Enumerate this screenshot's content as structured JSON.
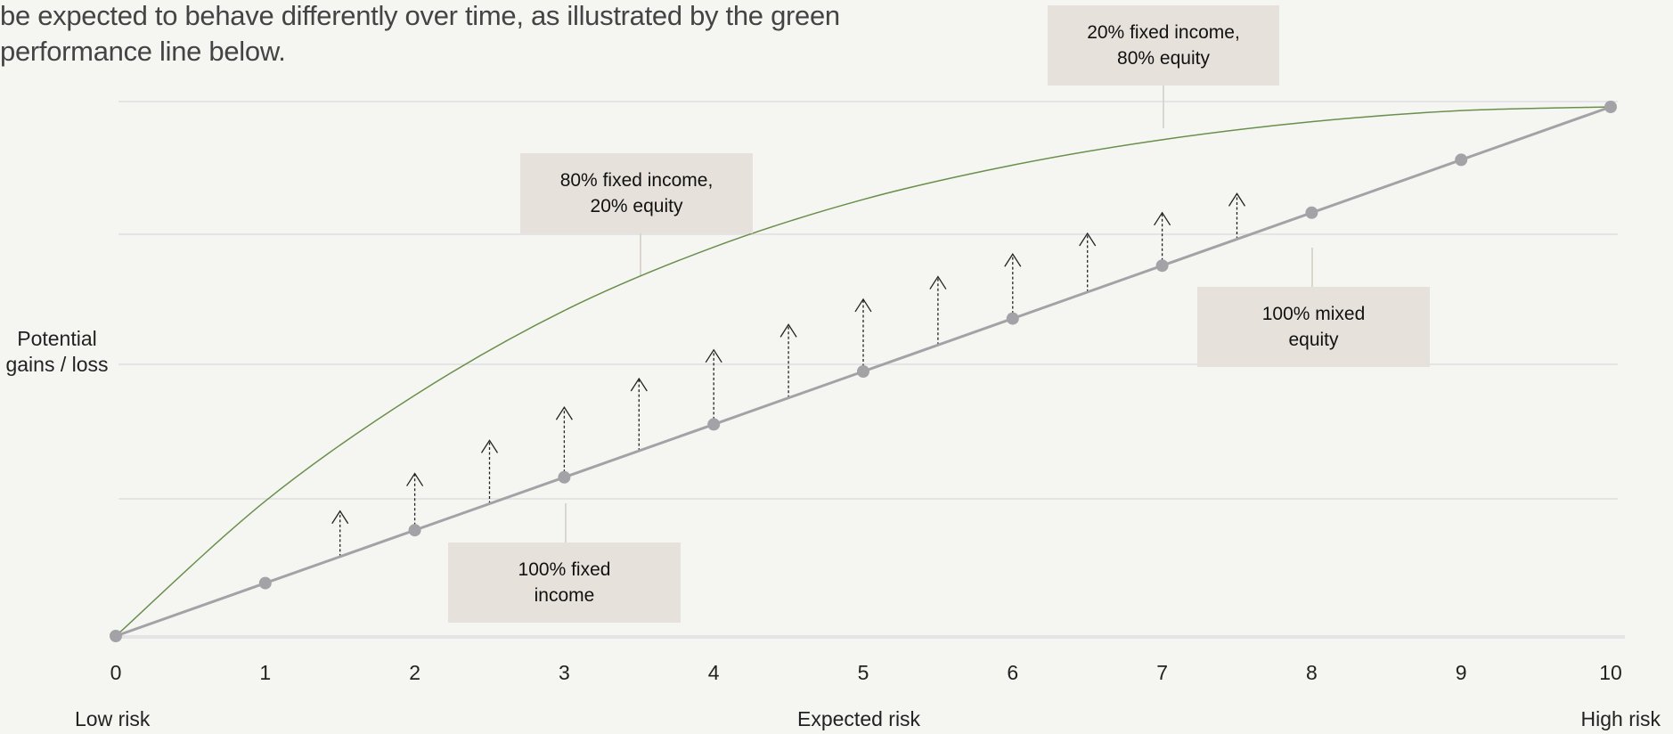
{
  "intro_text": "be expected to behave differently over time, as illustrated by the green performance line below.",
  "chart_data": {
    "type": "line",
    "title": "",
    "xlabel": "Expected risk",
    "ylabel": "Potential gains / loss",
    "x_end_labels": {
      "left": "Low risk",
      "right": "High risk"
    },
    "xlim": [
      0,
      10
    ],
    "ylim": [
      0,
      100
    ],
    "x_ticks": [
      "0",
      "1",
      "2",
      "3",
      "4",
      "5",
      "6",
      "7",
      "8",
      "9",
      "10"
    ],
    "grid": true,
    "series": [
      {
        "name": "",
        "color": "#a3a3a7",
        "style": "straight line with markers",
        "x": [
          0,
          1,
          2,
          3,
          4,
          5,
          6,
          7,
          8,
          9,
          10
        ],
        "y": [
          0,
          10,
          20,
          30,
          40,
          50,
          60,
          70,
          80,
          90,
          100
        ]
      },
      {
        "name": "",
        "color": "#6a8f4c",
        "style": "curve",
        "x": [
          0,
          1,
          2,
          3,
          4,
          5,
          6,
          7,
          8,
          9,
          10
        ],
        "y": [
          0,
          25.5,
          45.5,
          61.5,
          73.5,
          82.5,
          89,
          93.8,
          97.2,
          99.3,
          100
        ]
      }
    ],
    "arrows_x": [
      1.5,
      2,
      2.5,
      3,
      3.5,
      4,
      4.5,
      5,
      5.5,
      6,
      6.5,
      7,
      7.5
    ],
    "annotations": [
      {
        "text": "100% fixed income",
        "x": 3,
        "y": 30
      },
      {
        "text": "80% fixed income, 20% equity",
        "x": 3.5,
        "y": 68
      },
      {
        "text": "100% mixed equity",
        "x": 8,
        "y": 73
      },
      {
        "text": "20% fixed income, 80% equity",
        "x": 7,
        "y": 95.5
      }
    ]
  },
  "callouts": {
    "c1_l1": "100% fixed",
    "c1_l2": "income",
    "c2_l1": "80% fixed income,",
    "c2_l2": "20% equity",
    "c3_l1": "100% mixed",
    "c3_l2": "equity",
    "c4_l1": "20% fixed income,",
    "c4_l2": "80% equity"
  },
  "colors": {
    "background": "#f5f6f2",
    "callout_bg": "#e6e2db",
    "grid": "#e4e4e6",
    "linear_line": "#a3a3a7",
    "performance_line": "#6a8f4c",
    "arrow": "#222222"
  }
}
